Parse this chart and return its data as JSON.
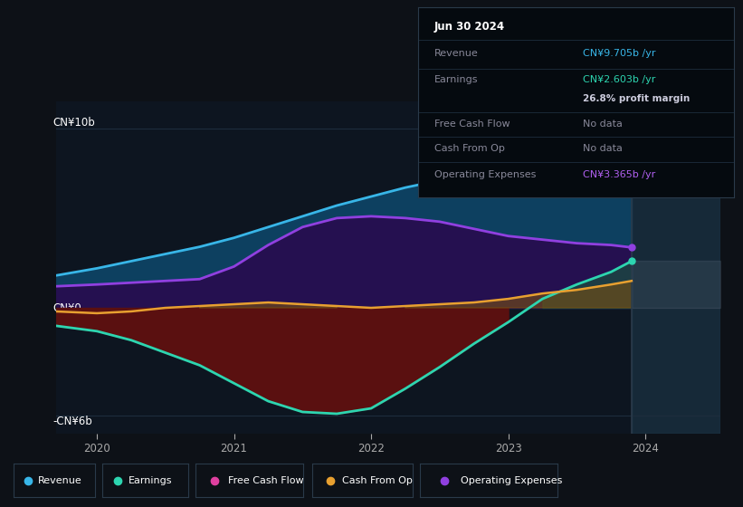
{
  "bg_color": "#0d1117",
  "plot_bg": "#0d1520",
  "grid_color": "#1e2d3d",
  "title": "Jun 30 2024",
  "tooltip": {
    "revenue": "CN¥9.705b /yr",
    "earnings": "CN¥2.603b /yr",
    "profit_margin": "26.8% profit margin",
    "free_cash_flow": "No data",
    "cash_from_op": "No data",
    "operating_expenses": "CN¥3.365b /yr"
  },
  "y_labels": [
    "CN¥10b",
    "CN¥0",
    "-CN¥6b"
  ],
  "y_ticks": [
    10,
    0,
    -6
  ],
  "x_ticks": [
    2020,
    2021,
    2022,
    2023,
    2024
  ],
  "x_labels": [
    "2020",
    "2021",
    "2022",
    "2023",
    "2024"
  ],
  "legend": [
    {
      "label": "Revenue",
      "color": "#38b6e8"
    },
    {
      "label": "Earnings",
      "color": "#2dd5b0"
    },
    {
      "label": "Free Cash Flow",
      "color": "#e040a0"
    },
    {
      "label": "Cash From Op",
      "color": "#e8a030"
    },
    {
      "label": "Operating Expenses",
      "color": "#9040e0"
    }
  ],
  "revenue_color": "#38b6e8",
  "earnings_color": "#2dd5b0",
  "free_cash_flow_color": "#e040a0",
  "cash_from_op_color": "#e8a030",
  "op_expenses_color": "#9040e0",
  "revenue_fill_color": "#0d4060",
  "earnings_fill_neg_color": "#5a1010",
  "op_expenses_fill_color": "#251050",
  "x_data": [
    2019.7,
    2020.0,
    2020.25,
    2020.5,
    2020.75,
    2021.0,
    2021.25,
    2021.5,
    2021.75,
    2022.0,
    2022.25,
    2022.5,
    2022.75,
    2023.0,
    2023.25,
    2023.5,
    2023.75,
    2023.9
  ],
  "revenue": [
    1.8,
    2.2,
    2.6,
    3.0,
    3.4,
    3.9,
    4.5,
    5.1,
    5.7,
    6.2,
    6.7,
    7.1,
    7.5,
    7.9,
    8.3,
    8.7,
    9.2,
    9.705
  ],
  "earnings": [
    -1.0,
    -1.3,
    -1.8,
    -2.5,
    -3.2,
    -4.2,
    -5.2,
    -5.8,
    -5.9,
    -5.6,
    -4.5,
    -3.3,
    -2.0,
    -0.8,
    0.5,
    1.3,
    2.0,
    2.603
  ],
  "cash_from_op": [
    -0.2,
    -0.3,
    -0.2,
    0.0,
    0.1,
    0.2,
    0.3,
    0.2,
    0.1,
    0.0,
    0.1,
    0.2,
    0.3,
    0.5,
    0.8,
    1.0,
    1.3,
    1.5
  ],
  "op_expenses": [
    1.2,
    1.3,
    1.4,
    1.5,
    1.6,
    2.3,
    3.5,
    4.5,
    5.0,
    5.1,
    5.0,
    4.8,
    4.4,
    4.0,
    3.8,
    3.6,
    3.5,
    3.365
  ],
  "ylim": [
    -7.0,
    11.5
  ],
  "xlim": [
    2019.7,
    2024.55
  ],
  "divider_x": 2023.9,
  "future_end": 2024.55
}
